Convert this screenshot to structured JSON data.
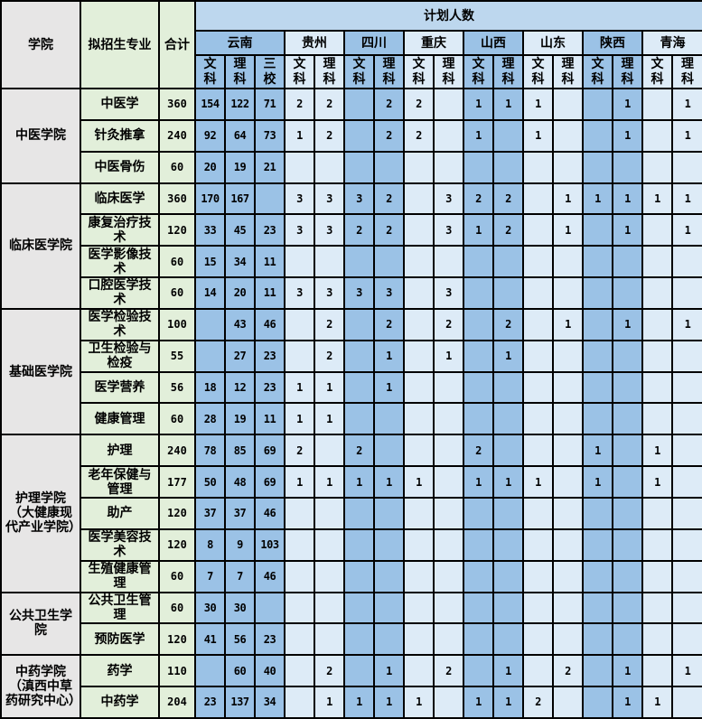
{
  "headers": {
    "college": "学院",
    "major": "拟招生专业",
    "total": "合计",
    "plan": "计划人数"
  },
  "provinces": [
    {
      "name": "云南",
      "subs": [
        "文科",
        "理科",
        "三校"
      ],
      "shade": "dark"
    },
    {
      "name": "贵州",
      "subs": [
        "文科",
        "理科"
      ],
      "shade": "light"
    },
    {
      "name": "四川",
      "subs": [
        "文科",
        "理科"
      ],
      "shade": "dark"
    },
    {
      "name": "重庆",
      "subs": [
        "文科",
        "理科"
      ],
      "shade": "light"
    },
    {
      "name": "山西",
      "subs": [
        "文科",
        "理科"
      ],
      "shade": "dark"
    },
    {
      "name": "山东",
      "subs": [
        "文科",
        "理科"
      ],
      "shade": "light"
    },
    {
      "name": "陕西",
      "subs": [
        "文科",
        "理科"
      ],
      "shade": "dark"
    },
    {
      "name": "青海",
      "subs": [
        "文科",
        "理科"
      ],
      "shade": "light"
    }
  ],
  "colors": {
    "college_bg": "#e7e6e6",
    "major_bg": "#e2efda",
    "header_bg": "#bdd7ee",
    "dark_col": "#9bc2e6",
    "light_col": "#ddebf7"
  },
  "colleges": [
    {
      "name": "中医学院",
      "majors": [
        {
          "name": "中医学",
          "total": "360",
          "values": [
            "154",
            "122",
            "71",
            "2",
            "2",
            "",
            "2",
            "2",
            "",
            "1",
            "1",
            "1",
            "",
            "",
            "1",
            "",
            "1"
          ]
        },
        {
          "name": "针灸推拿",
          "total": "240",
          "values": [
            "92",
            "64",
            "73",
            "1",
            "2",
            "",
            "2",
            "2",
            "",
            "1",
            "",
            "1",
            "",
            "",
            "1",
            "",
            "1"
          ]
        },
        {
          "name": "中医骨伤",
          "total": "60",
          "values": [
            "20",
            "19",
            "21",
            "",
            "",
            "",
            "",
            "",
            "",
            "",
            "",
            "",
            "",
            "",
            "",
            "",
            ""
          ]
        }
      ]
    },
    {
      "name": "临床医学院",
      "majors": [
        {
          "name": "临床医学",
          "total": "360",
          "values": [
            "170",
            "167",
            "",
            "3",
            "3",
            "3",
            "2",
            "",
            "3",
            "2",
            "2",
            "",
            "1",
            "1",
            "1",
            "1",
            "1"
          ]
        },
        {
          "name": "康复治疗技术",
          "total": "120",
          "values": [
            "33",
            "45",
            "23",
            "3",
            "3",
            "2",
            "2",
            "",
            "3",
            "1",
            "2",
            "",
            "1",
            "",
            "1",
            "",
            "1"
          ]
        },
        {
          "name": "医学影像技术",
          "total": "60",
          "values": [
            "15",
            "34",
            "11",
            "",
            "",
            "",
            "",
            "",
            "",
            "",
            "",
            "",
            "",
            "",
            "",
            "",
            ""
          ]
        },
        {
          "name": "口腔医学技术",
          "total": "60",
          "values": [
            "14",
            "20",
            "11",
            "3",
            "3",
            "3",
            "3",
            "",
            "3",
            "",
            "",
            "",
            "",
            "",
            "",
            "",
            ""
          ]
        }
      ]
    },
    {
      "name": "基础医学院",
      "majors": [
        {
          "name": "医学检验技术",
          "total": "100",
          "values": [
            "",
            "43",
            "46",
            "",
            "2",
            "",
            "2",
            "",
            "2",
            "",
            "2",
            "",
            "1",
            "",
            "1",
            "",
            "1"
          ]
        },
        {
          "name": "卫生检验与检疫",
          "total": "55",
          "values": [
            "",
            "27",
            "23",
            "",
            "2",
            "",
            "1",
            "",
            "1",
            "",
            "1",
            "",
            "",
            "",
            "",
            "",
            ""
          ]
        },
        {
          "name": "医学营养",
          "total": "56",
          "values": [
            "18",
            "12",
            "23",
            "1",
            "1",
            "",
            "1",
            "",
            "",
            "",
            "",
            "",
            "",
            "",
            "",
            "",
            ""
          ]
        },
        {
          "name": "健康管理",
          "total": "60",
          "values": [
            "28",
            "19",
            "11",
            "1",
            "1",
            "",
            "",
            "",
            "",
            "",
            "",
            "",
            "",
            "",
            "",
            "",
            ""
          ]
        }
      ]
    },
    {
      "name": "护理学院（大健康现代产业学院）",
      "majors": [
        {
          "name": "护理",
          "total": "240",
          "values": [
            "78",
            "85",
            "69",
            "2",
            "",
            "2",
            "",
            "",
            "",
            "2",
            "",
            "",
            "",
            "1",
            "",
            "1",
            ""
          ]
        },
        {
          "name": "老年保健与管理",
          "total": "177",
          "values": [
            "50",
            "48",
            "69",
            "1",
            "1",
            "1",
            "1",
            "1",
            "",
            "1",
            "1",
            "1",
            "",
            "1",
            "",
            "1",
            ""
          ]
        },
        {
          "name": "助产",
          "total": "120",
          "values": [
            "37",
            "37",
            "46",
            "",
            "",
            "",
            "",
            "",
            "",
            "",
            "",
            "",
            "",
            "",
            "",
            "",
            ""
          ]
        },
        {
          "name": "医学美容技术",
          "total": "120",
          "values": [
            "8",
            "9",
            "103",
            "",
            "",
            "",
            "",
            "",
            "",
            "",
            "",
            "",
            "",
            "",
            "",
            "",
            ""
          ]
        },
        {
          "name": "生殖健康管理",
          "total": "60",
          "values": [
            "7",
            "7",
            "46",
            "",
            "",
            "",
            "",
            "",
            "",
            "",
            "",
            "",
            "",
            "",
            "",
            "",
            ""
          ]
        }
      ]
    },
    {
      "name": "公共卫生学院",
      "majors": [
        {
          "name": "公共卫生管理",
          "total": "60",
          "values": [
            "30",
            "30",
            "",
            "",
            "",
            "",
            "",
            "",
            "",
            "",
            "",
            "",
            "",
            "",
            "",
            "",
            ""
          ]
        },
        {
          "name": "预防医学",
          "total": "120",
          "values": [
            "41",
            "56",
            "23",
            "",
            "",
            "",
            "",
            "",
            "",
            "",
            "",
            "",
            "",
            "",
            "",
            "",
            ""
          ]
        }
      ]
    },
    {
      "name": "中药学院（滇西中草药研究中心）",
      "majors": [
        {
          "name": "药学",
          "total": "110",
          "values": [
            "",
            "60",
            "40",
            "",
            "2",
            "",
            "1",
            "",
            "2",
            "",
            "1",
            "",
            "2",
            "",
            "1",
            "",
            "1"
          ]
        },
        {
          "name": "中药学",
          "total": "204",
          "values": [
            "23",
            "137",
            "34",
            "",
            "1",
            "1",
            "1",
            "1",
            "",
            "1",
            "1",
            "2",
            "",
            "",
            "1",
            "1",
            ""
          ]
        }
      ]
    }
  ]
}
